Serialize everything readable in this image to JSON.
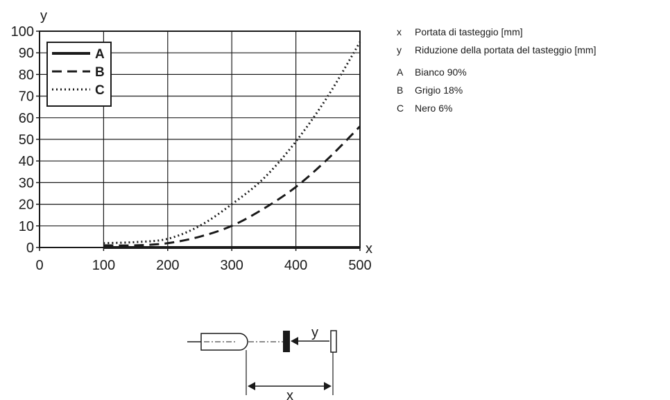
{
  "chart_data": {
    "type": "line",
    "xlabel": "x",
    "ylabel": "y",
    "xlim": [
      0,
      500
    ],
    "ylim": [
      0,
      100
    ],
    "x_ticks": [
      "0",
      "100",
      "200",
      "300",
      "400",
      "500"
    ],
    "y_ticks": [
      "0",
      "10",
      "20",
      "30",
      "40",
      "50",
      "60",
      "70",
      "80",
      "90",
      "100"
    ],
    "grid": true,
    "legend_position": "top-left",
    "series": [
      {
        "name": "A",
        "style": "solid",
        "color": "#1a1a1a",
        "x": [
          100,
          200,
          300,
          400,
          500
        ],
        "y": [
          0,
          0,
          0,
          0,
          0
        ]
      },
      {
        "name": "B",
        "style": "dashed",
        "color": "#1a1a1a",
        "x": [
          100,
          150,
          200,
          250,
          300,
          350,
          400,
          450,
          500
        ],
        "y": [
          1,
          1,
          2,
          5,
          10,
          18,
          28,
          41,
          56
        ]
      },
      {
        "name": "C",
        "style": "dotted",
        "color": "#1a1a1a",
        "x": [
          100,
          150,
          200,
          250,
          300,
          350,
          400,
          450,
          500
        ],
        "y": [
          2,
          2.5,
          4,
          10,
          20,
          32,
          49,
          70,
          95
        ]
      }
    ]
  },
  "key": {
    "items": [
      {
        "letter": "x",
        "text": "Portata di tasteggio [mm]"
      },
      {
        "letter": "y",
        "text": "Riduzione della portata del tasteggio [mm]"
      },
      {
        "letter": "A",
        "text": "Bianco 90%"
      },
      {
        "letter": "B",
        "text": "Grigio 18%"
      },
      {
        "letter": "C",
        "text": "Nero 6%"
      }
    ]
  },
  "diagram": {
    "y_label": "y",
    "x_label": "x"
  }
}
